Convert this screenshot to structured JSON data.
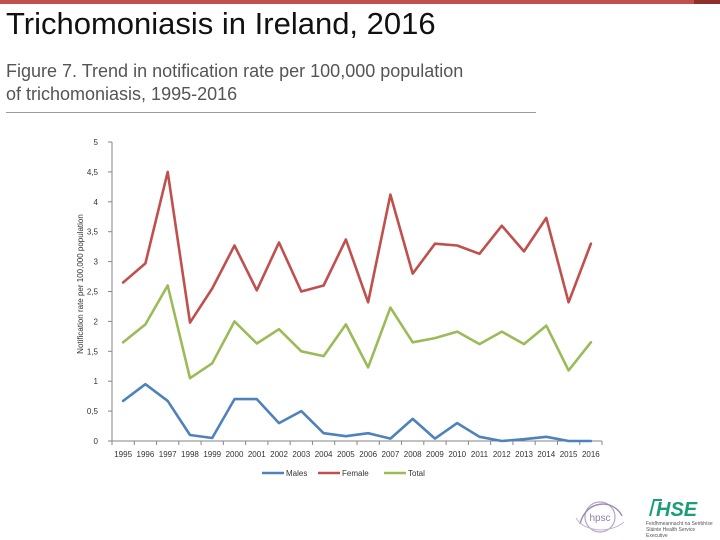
{
  "header": {
    "title": "Trichomoniasis in Ireland, 2016",
    "subtitle_line1": "Figure 7. Trend in notification rate per 100,000 population",
    "subtitle_line2": "of  trichomoniasis, 1995-2016"
  },
  "logos": {
    "hpsc_text": "hpsc",
    "hse_text": "HSE",
    "hse_tagline": "Feidhmeannacht na Seirbhíse Sláinte Health Service Executive"
  },
  "colors": {
    "accent": "#c0504d",
    "males": "#4f81bd",
    "female": "#c0504d",
    "total": "#9bbb59"
  },
  "chart_data": {
    "type": "line",
    "title": "",
    "xlabel": "",
    "ylabel": "Notification rate per 100,000 population",
    "x": [
      "1995",
      "1996",
      "1997",
      "1998",
      "1999",
      "2000",
      "2001",
      "2002",
      "2003",
      "2004",
      "2005",
      "2006",
      "2007",
      "2008",
      "2009",
      "2010",
      "2011",
      "2012",
      "2013",
      "2014",
      "2015",
      "2016"
    ],
    "ylim": [
      0,
      5
    ],
    "yticks": [
      "0",
      "0,5",
      "1",
      "1,5",
      "2",
      "2,5",
      "3",
      "3,5",
      "4",
      "4,5",
      "5"
    ],
    "ytick_values": [
      0,
      0.5,
      1,
      1.5,
      2,
      2.5,
      3,
      3.5,
      4,
      4.5,
      5
    ],
    "grid": false,
    "legend_position": "bottom",
    "series": [
      {
        "name": "Males",
        "color": "#4f81bd",
        "values": [
          0.67,
          0.95,
          0.67,
          0.1,
          0.05,
          0.7,
          0.7,
          0.3,
          0.5,
          0.13,
          0.08,
          0.13,
          0.04,
          0.37,
          0.04,
          0.3,
          0.07,
          0.0,
          0.03,
          0.07,
          0.0,
          0.0
        ]
      },
      {
        "name": "Female",
        "color": "#c0504d",
        "values": [
          2.65,
          2.97,
          4.5,
          1.98,
          2.55,
          3.27,
          2.52,
          3.32,
          2.5,
          2.6,
          3.37,
          2.32,
          4.12,
          2.8,
          3.3,
          3.27,
          3.13,
          3.6,
          3.17,
          3.73,
          2.32,
          3.3
        ]
      },
      {
        "name": "Total",
        "color": "#9bbb59",
        "values": [
          1.65,
          1.95,
          2.6,
          1.05,
          1.3,
          2.0,
          1.63,
          1.87,
          1.5,
          1.42,
          1.95,
          1.23,
          2.23,
          1.65,
          1.72,
          1.83,
          1.62,
          1.83,
          1.62,
          1.93,
          1.18,
          1.65
        ]
      }
    ]
  }
}
